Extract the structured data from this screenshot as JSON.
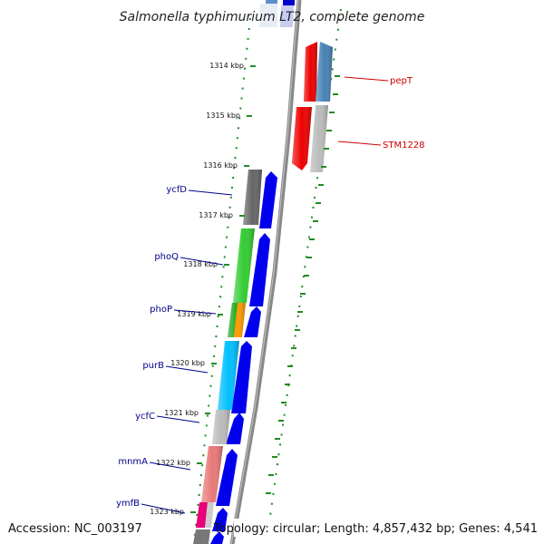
{
  "title": "Salmonella typhimurium LT2, complete genome",
  "footer": {
    "accession": "Accession: NC_003197",
    "summary": "Topology: circular; Length: 4,857,432 bp; Genes: 4,541"
  },
  "colors": {
    "backbone": "#888888",
    "tick": "#228b22",
    "left_label": "#00008b",
    "right_label": "#cc0000",
    "forward_gene": "#0000ee",
    "reverse_gene": "#ee0000",
    "reverse_gene_2": "#4682b4"
  },
  "scale_ticks": [
    {
      "label": "1314 kbp"
    },
    {
      "label": "1315 kbp"
    },
    {
      "label": "1316 kbp"
    },
    {
      "label": "1317 kbp"
    },
    {
      "label": "1318 kbp"
    },
    {
      "label": "1319 kbp"
    },
    {
      "label": "1320 kbp"
    },
    {
      "label": "1321 kbp"
    },
    {
      "label": "1322 kbp"
    },
    {
      "label": "1323 kbp"
    }
  ],
  "left_genes": [
    {
      "label": "ycfD"
    },
    {
      "label": "phoQ"
    },
    {
      "label": "phoP"
    },
    {
      "label": "purB"
    },
    {
      "label": "ycfC"
    },
    {
      "label": "mnmA"
    },
    {
      "label": "ymfB"
    }
  ],
  "right_genes": [
    {
      "label": "pepT"
    },
    {
      "label": "STM1228"
    }
  ]
}
